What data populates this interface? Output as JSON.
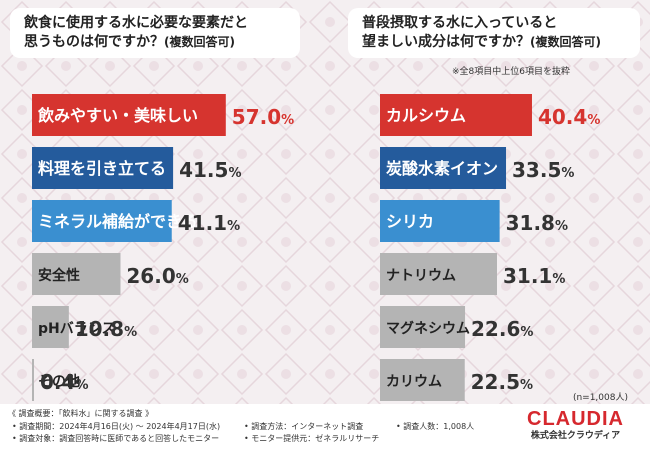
{
  "colors": {
    "top1": "#d6342f",
    "top2": "#245b9c",
    "top3": "#3a8fd0",
    "rest": "#b4b4b4",
    "rank1_value": "#d6342f"
  },
  "left_panel": {
    "title_line1": "飲食に使用する水に必要な要素だと",
    "title_line2": "思うものは何ですか？",
    "title_suffix": "(複数回答可)"
  },
  "right_panel": {
    "title_line1": "普段摂取する水に入っていると",
    "title_line2": "望ましい成分は何ですか？",
    "title_suffix": "(複数回答可)",
    "note": "※全8項目中上位6項目を抜粋"
  },
  "chart_data": [
    {
      "type": "bar",
      "orientation": "horizontal",
      "title": "飲食に使用する水に必要な要素だと思うものは何ですか？(複数回答可)",
      "categories": [
        "飲みやすい・美味しい",
        "料理を引き立てる",
        "ミネラル補給ができる",
        "安全性",
        "pHバランス",
        "その他"
      ],
      "values": [
        57.0,
        41.5,
        41.1,
        26.0,
        10.8,
        0.4
      ],
      "labels": [
        "57.0%",
        "41.5%",
        "41.1%",
        "26.0%",
        "10.8%",
        "0.4%"
      ],
      "unit": "%",
      "xlim": [
        0,
        60
      ]
    },
    {
      "type": "bar",
      "orientation": "horizontal",
      "title": "普段摂取する水に入っていると望ましい成分は何ですか？(複数回答可)",
      "categories": [
        "カルシウム",
        "炭酸水素イオン",
        "シリカ",
        "ナトリウム",
        "マグネシウム",
        "カリウム"
      ],
      "values": [
        40.4,
        33.5,
        31.8,
        31.1,
        22.6,
        22.5
      ],
      "labels": [
        "40.4%",
        "33.5%",
        "31.8%",
        "31.1%",
        "22.6%",
        "22.5%"
      ],
      "unit": "%",
      "xlim": [
        0,
        42
      ]
    }
  ],
  "sample_size": "(n=1,008人)",
  "footer": {
    "survey_summary": "《 調査概要：「飲料水」に関する調査 》",
    "period": "• 調査期間：2024年4月16日(火) ～ 2024年4月17日(水)",
    "method": "• 調査方法：インターネット調査",
    "respondents": "• 調査人数：1,008人",
    "target": "• 調査対象：調査回答時に医師であると回答したモニター",
    "provider": "• モニター提供元：ゼネラルリサーチ"
  },
  "logo": {
    "brand": "CLAUDIA",
    "company": "株式会社クラウディア"
  }
}
